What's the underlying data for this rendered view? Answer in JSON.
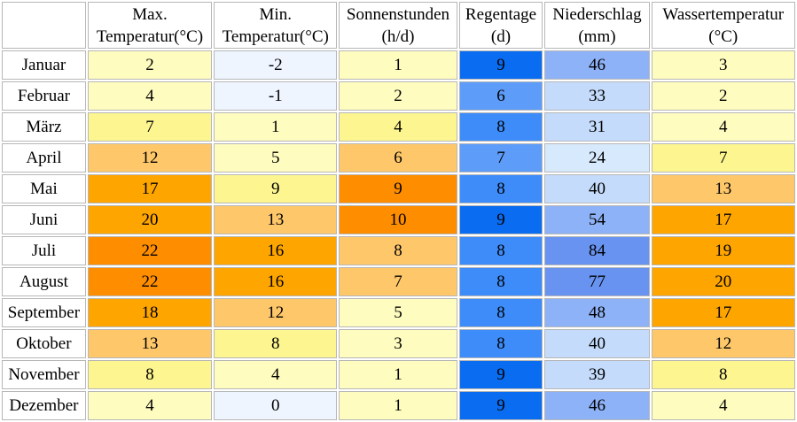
{
  "table": {
    "headers": [
      {
        "line1": "Max.",
        "line2": "Temperatur(°C)"
      },
      {
        "line1": "Min.",
        "line2": "Temperatur(°C)"
      },
      {
        "line1": "Sonnenstunden",
        "line2": "(h/d)"
      },
      {
        "line1": "Regentage",
        "line2": "(d)"
      },
      {
        "line1": "Niederschlag",
        "line2": "(mm)"
      },
      {
        "line1": "Wassertemperatur",
        "line2": "(°C)"
      }
    ],
    "rows": [
      {
        "month": "Januar",
        "values": [
          "2",
          "-2",
          "1",
          "9",
          "46",
          "3"
        ],
        "colors": [
          "#fffcbf",
          "#eef5ff",
          "#fffcbf",
          "#0a6cf0",
          "#8eb2f7",
          "#fffcbf"
        ]
      },
      {
        "month": "Februar",
        "values": [
          "4",
          "-1",
          "2",
          "6",
          "33",
          "2"
        ],
        "colors": [
          "#fffcbf",
          "#eef5ff",
          "#fffcbf",
          "#5d9cf8",
          "#c4dbfb",
          "#fffcbf"
        ]
      },
      {
        "month": "März",
        "values": [
          "7",
          "1",
          "4",
          "8",
          "31",
          "4"
        ],
        "colors": [
          "#fdf690",
          "#fffcbf",
          "#fdf690",
          "#3d8cf9",
          "#c4dbfb",
          "#fffcbf"
        ]
      },
      {
        "month": "April",
        "values": [
          "12",
          "5",
          "6",
          "7",
          "24",
          "7"
        ],
        "colors": [
          "#fec86a",
          "#fffcbf",
          "#fec86a",
          "#5d9cf8",
          "#d7e9fc",
          "#fdf690"
        ]
      },
      {
        "month": "Mai",
        "values": [
          "17",
          "9",
          "9",
          "8",
          "40",
          "13"
        ],
        "colors": [
          "#fea500",
          "#fdf690",
          "#fe8d00",
          "#3d8cf9",
          "#c4dbfb",
          "#fec86a"
        ]
      },
      {
        "month": "Juni",
        "values": [
          "20",
          "13",
          "10",
          "9",
          "54",
          "17"
        ],
        "colors": [
          "#fea500",
          "#fec86a",
          "#fe8d00",
          "#0a6cf0",
          "#8eb2f7",
          "#fea500"
        ]
      },
      {
        "month": "Juli",
        "values": [
          "22",
          "16",
          "8",
          "8",
          "84",
          "19"
        ],
        "colors": [
          "#fe8d00",
          "#fea500",
          "#fec86a",
          "#3d8cf9",
          "#6893f0",
          "#fea500"
        ]
      },
      {
        "month": "August",
        "values": [
          "22",
          "16",
          "7",
          "8",
          "77",
          "20"
        ],
        "colors": [
          "#fe8d00",
          "#fea500",
          "#fec86a",
          "#3d8cf9",
          "#6893f0",
          "#fea500"
        ]
      },
      {
        "month": "September",
        "values": [
          "18",
          "12",
          "5",
          "8",
          "48",
          "17"
        ],
        "colors": [
          "#fea500",
          "#fec86a",
          "#fffcbf",
          "#3d8cf9",
          "#8eb2f7",
          "#fea500"
        ]
      },
      {
        "month": "Oktober",
        "values": [
          "13",
          "8",
          "3",
          "8",
          "40",
          "12"
        ],
        "colors": [
          "#fec86a",
          "#fdf690",
          "#fffcbf",
          "#3d8cf9",
          "#c4dbfb",
          "#fec86a"
        ]
      },
      {
        "month": "November",
        "values": [
          "8",
          "4",
          "1",
          "9",
          "39",
          "8"
        ],
        "colors": [
          "#fdf690",
          "#fffcbf",
          "#fffcbf",
          "#0a6cf0",
          "#c4dbfb",
          "#fdf690"
        ]
      },
      {
        "month": "Dezember",
        "values": [
          "4",
          "0",
          "1",
          "9",
          "46",
          "4"
        ],
        "colors": [
          "#fffcbf",
          "#eef5ff",
          "#fffcbf",
          "#0a6cf0",
          "#8eb2f7",
          "#fffcbf"
        ]
      }
    ]
  }
}
